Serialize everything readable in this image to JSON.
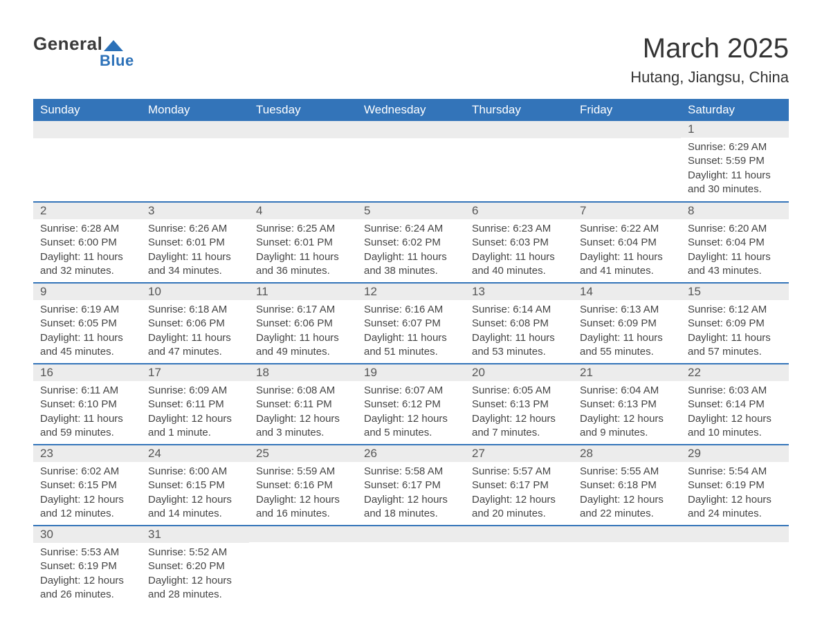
{
  "brand": {
    "general": "General",
    "blue": "Blue"
  },
  "title": "March 2025",
  "location": "Hutang, Jiangsu, China",
  "colors": {
    "header_bg": "#3374b9",
    "header_text": "#ffffff",
    "row_stripe": "#ececec",
    "row_border": "#3374b9",
    "body_text": "#444444",
    "title_text": "#333333",
    "logo_blue": "#2c71b8"
  },
  "fonts": {
    "title_pt": 40,
    "location_pt": 22,
    "th_pt": 17,
    "body_pt": 15
  },
  "day_headers": [
    "Sunday",
    "Monday",
    "Tuesday",
    "Wednesday",
    "Thursday",
    "Friday",
    "Saturday"
  ],
  "weeks": [
    [
      null,
      null,
      null,
      null,
      null,
      null,
      {
        "n": "1",
        "sunrise": "6:29 AM",
        "sunset": "5:59 PM",
        "daylight": "11 hours and 30 minutes."
      }
    ],
    [
      {
        "n": "2",
        "sunrise": "6:28 AM",
        "sunset": "6:00 PM",
        "daylight": "11 hours and 32 minutes."
      },
      {
        "n": "3",
        "sunrise": "6:26 AM",
        "sunset": "6:01 PM",
        "daylight": "11 hours and 34 minutes."
      },
      {
        "n": "4",
        "sunrise": "6:25 AM",
        "sunset": "6:01 PM",
        "daylight": "11 hours and 36 minutes."
      },
      {
        "n": "5",
        "sunrise": "6:24 AM",
        "sunset": "6:02 PM",
        "daylight": "11 hours and 38 minutes."
      },
      {
        "n": "6",
        "sunrise": "6:23 AM",
        "sunset": "6:03 PM",
        "daylight": "11 hours and 40 minutes."
      },
      {
        "n": "7",
        "sunrise": "6:22 AM",
        "sunset": "6:04 PM",
        "daylight": "11 hours and 41 minutes."
      },
      {
        "n": "8",
        "sunrise": "6:20 AM",
        "sunset": "6:04 PM",
        "daylight": "11 hours and 43 minutes."
      }
    ],
    [
      {
        "n": "9",
        "sunrise": "6:19 AM",
        "sunset": "6:05 PM",
        "daylight": "11 hours and 45 minutes."
      },
      {
        "n": "10",
        "sunrise": "6:18 AM",
        "sunset": "6:06 PM",
        "daylight": "11 hours and 47 minutes."
      },
      {
        "n": "11",
        "sunrise": "6:17 AM",
        "sunset": "6:06 PM",
        "daylight": "11 hours and 49 minutes."
      },
      {
        "n": "12",
        "sunrise": "6:16 AM",
        "sunset": "6:07 PM",
        "daylight": "11 hours and 51 minutes."
      },
      {
        "n": "13",
        "sunrise": "6:14 AM",
        "sunset": "6:08 PM",
        "daylight": "11 hours and 53 minutes."
      },
      {
        "n": "14",
        "sunrise": "6:13 AM",
        "sunset": "6:09 PM",
        "daylight": "11 hours and 55 minutes."
      },
      {
        "n": "15",
        "sunrise": "6:12 AM",
        "sunset": "6:09 PM",
        "daylight": "11 hours and 57 minutes."
      }
    ],
    [
      {
        "n": "16",
        "sunrise": "6:11 AM",
        "sunset": "6:10 PM",
        "daylight": "11 hours and 59 minutes."
      },
      {
        "n": "17",
        "sunrise": "6:09 AM",
        "sunset": "6:11 PM",
        "daylight": "12 hours and 1 minute."
      },
      {
        "n": "18",
        "sunrise": "6:08 AM",
        "sunset": "6:11 PM",
        "daylight": "12 hours and 3 minutes."
      },
      {
        "n": "19",
        "sunrise": "6:07 AM",
        "sunset": "6:12 PM",
        "daylight": "12 hours and 5 minutes."
      },
      {
        "n": "20",
        "sunrise": "6:05 AM",
        "sunset": "6:13 PM",
        "daylight": "12 hours and 7 minutes."
      },
      {
        "n": "21",
        "sunrise": "6:04 AM",
        "sunset": "6:13 PM",
        "daylight": "12 hours and 9 minutes."
      },
      {
        "n": "22",
        "sunrise": "6:03 AM",
        "sunset": "6:14 PM",
        "daylight": "12 hours and 10 minutes."
      }
    ],
    [
      {
        "n": "23",
        "sunrise": "6:02 AM",
        "sunset": "6:15 PM",
        "daylight": "12 hours and 12 minutes."
      },
      {
        "n": "24",
        "sunrise": "6:00 AM",
        "sunset": "6:15 PM",
        "daylight": "12 hours and 14 minutes."
      },
      {
        "n": "25",
        "sunrise": "5:59 AM",
        "sunset": "6:16 PM",
        "daylight": "12 hours and 16 minutes."
      },
      {
        "n": "26",
        "sunrise": "5:58 AM",
        "sunset": "6:17 PM",
        "daylight": "12 hours and 18 minutes."
      },
      {
        "n": "27",
        "sunrise": "5:57 AM",
        "sunset": "6:17 PM",
        "daylight": "12 hours and 20 minutes."
      },
      {
        "n": "28",
        "sunrise": "5:55 AM",
        "sunset": "6:18 PM",
        "daylight": "12 hours and 22 minutes."
      },
      {
        "n": "29",
        "sunrise": "5:54 AM",
        "sunset": "6:19 PM",
        "daylight": "12 hours and 24 minutes."
      }
    ],
    [
      {
        "n": "30",
        "sunrise": "5:53 AM",
        "sunset": "6:19 PM",
        "daylight": "12 hours and 26 minutes."
      },
      {
        "n": "31",
        "sunrise": "5:52 AM",
        "sunset": "6:20 PM",
        "daylight": "12 hours and 28 minutes."
      },
      null,
      null,
      null,
      null,
      null
    ]
  ],
  "labels": {
    "sunrise": "Sunrise: ",
    "sunset": "Sunset: ",
    "daylight": "Daylight: "
  }
}
